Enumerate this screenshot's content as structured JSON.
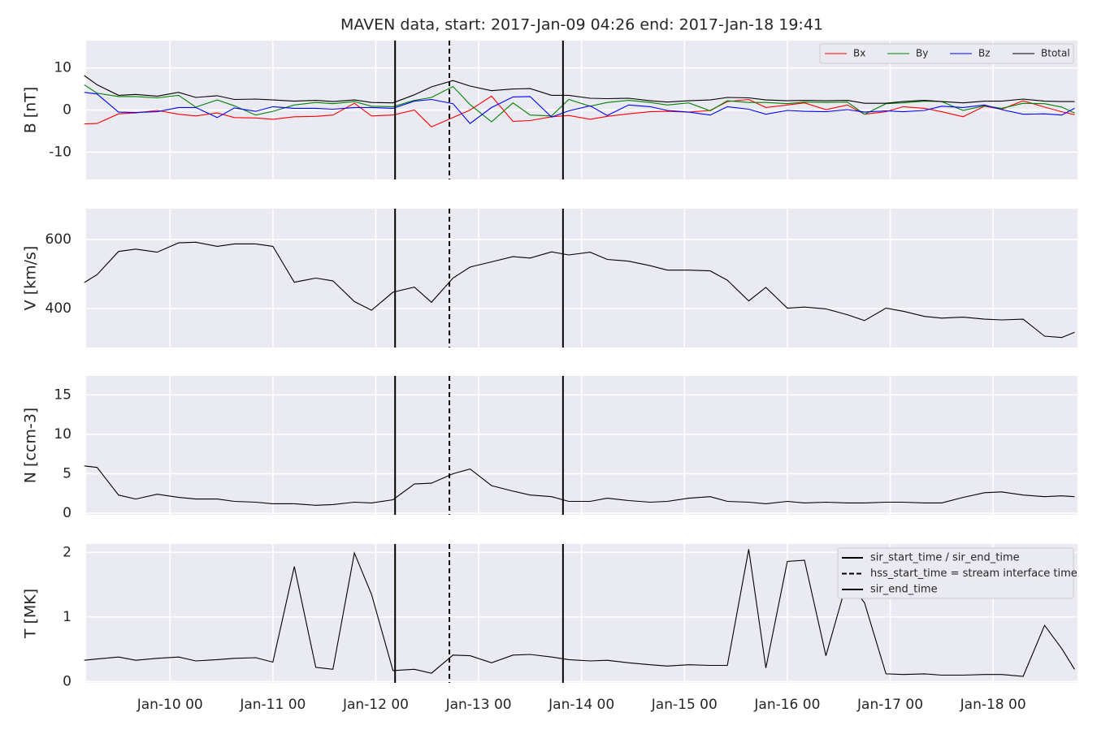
{
  "chart_data": [
    {
      "type": "line",
      "title": "MAVEN data, start: 2017-Jan-09 04:26  end: 2017-Jan-18 19:41",
      "ylabel": "B [nT]",
      "x": [
        "2017-01-09 04",
        "2017-01-09 07",
        "2017-01-09 12",
        "2017-01-09 16",
        "2017-01-09 21",
        "2017-01-10 02",
        "2017-01-10 06",
        "2017-01-10 11",
        "2017-01-10 15",
        "2017-01-10 20",
        "2017-01-11 00",
        "2017-01-11 05",
        "2017-01-11 10",
        "2017-01-11 14",
        "2017-01-11 19",
        "2017-01-11 23",
        "2017-01-12 04",
        "2017-01-12 09",
        "2017-01-12 13",
        "2017-01-12 18",
        "2017-01-12 22",
        "2017-01-13 03",
        "2017-01-13 08",
        "2017-01-13 12",
        "2017-01-13 17",
        "2017-01-13 21",
        "2017-01-14 02",
        "2017-01-14 06",
        "2017-01-14 11",
        "2017-01-14 16",
        "2017-01-14 20",
        "2017-01-15 01",
        "2017-01-15 06",
        "2017-01-15 10",
        "2017-01-15 15",
        "2017-01-15 19",
        "2017-01-16 00",
        "2017-01-16 04",
        "2017-01-16 09",
        "2017-01-16 14",
        "2017-01-16 18",
        "2017-01-16 23",
        "2017-01-17 03",
        "2017-01-17 08",
        "2017-01-17 12",
        "2017-01-17 17",
        "2017-01-17 22",
        "2017-01-18 02",
        "2017-01-18 07",
        "2017-01-18 12",
        "2017-01-18 16",
        "2017-01-18 19"
      ],
      "series": [
        {
          "name": "Bx",
          "color": "#ff0000",
          "values": [
            -3.3,
            -3.2,
            -0.9,
            -0.7,
            -0.1,
            -1.0,
            -1.4,
            -0.7,
            -1.8,
            -1.9,
            -2.2,
            -1.6,
            -1.5,
            -1.2,
            1.6,
            -1.4,
            -1.2,
            0.0,
            -4.0,
            -1.8,
            0.0,
            3.3,
            -2.7,
            -2.5,
            -1.6,
            -1.3,
            -2.2,
            -1.5,
            -0.9,
            -0.4,
            -0.3,
            -0.5,
            -0.1,
            2.0,
            2.5,
            0.6,
            1.2,
            1.7,
            0.1,
            1.2,
            -1.0,
            -0.4,
            0.8,
            0.4,
            -0.4,
            -1.6,
            0.9,
            0.2,
            2.2,
            0.7,
            -0.4,
            -1.1
          ]
        },
        {
          "name": "By",
          "color": "#008000",
          "values": [
            6.0,
            4.0,
            3.2,
            3.2,
            2.9,
            3.5,
            0.7,
            2.4,
            1.0,
            -1.2,
            -0.3,
            1.2,
            1.8,
            1.5,
            2.0,
            0.9,
            0.8,
            2.3,
            3.0,
            5.6,
            1.3,
            -2.8,
            1.7,
            -1.2,
            -1.4,
            2.5,
            0.9,
            1.8,
            2.3,
            1.8,
            1.2,
            1.7,
            -0.2,
            2.2,
            1.8,
            1.8,
            1.5,
            1.9,
            1.8,
            1.9,
            -1.0,
            1.5,
            1.7,
            2.1,
            2.0,
            -0.1,
            1.0,
            0.4,
            1.6,
            1.5,
            0.7,
            -0.7
          ]
        },
        {
          "name": "Bz",
          "color": "#0000ff",
          "values": [
            4.2,
            3.8,
            -0.5,
            -0.6,
            -0.4,
            0.6,
            0.6,
            -1.8,
            0.5,
            -0.3,
            0.8,
            0.4,
            0.4,
            0.2,
            0.6,
            0.6,
            0.4,
            2.1,
            2.5,
            1.5,
            -3.2,
            0.6,
            3.1,
            3.2,
            -1.7,
            -0.2,
            1.0,
            -1.3,
            1.2,
            0.8,
            -0.1,
            -0.5,
            -1.2,
            0.8,
            0.2,
            -1.0,
            -0.1,
            -0.3,
            -0.4,
            0.1,
            -0.5,
            -0.2,
            -0.4,
            -0.1,
            0.9,
            0.6,
            1.2,
            0.1,
            -1.0,
            -0.9,
            -1.2,
            0.4
          ]
        },
        {
          "name": "Btotal",
          "color": "#000000",
          "values": [
            8.2,
            6.0,
            3.5,
            3.7,
            3.3,
            4.2,
            3.0,
            3.4,
            2.5,
            2.6,
            2.4,
            2.1,
            2.3,
            2.0,
            2.4,
            1.8,
            1.7,
            3.6,
            5.5,
            7.0,
            5.7,
            4.6,
            5.0,
            5.1,
            3.5,
            3.5,
            2.8,
            2.7,
            2.8,
            2.2,
            1.9,
            2.2,
            2.4,
            3.0,
            2.9,
            2.4,
            2.2,
            2.3,
            2.2,
            2.3,
            1.6,
            1.6,
            2.0,
            2.3,
            2.0,
            1.7,
            2.1,
            2.1,
            2.6,
            2.1,
            2.0,
            2.0
          ]
        }
      ],
      "ylim": [
        -16.5,
        16.5
      ],
      "yticks": [
        -10,
        0,
        10
      ],
      "grid": true,
      "legend": "upper right"
    },
    {
      "type": "line",
      "ylabel": "V [km/s]",
      "x": [
        "2017-01-09 04",
        "2017-01-09 07",
        "2017-01-09 12",
        "2017-01-09 16",
        "2017-01-09 21",
        "2017-01-10 02",
        "2017-01-10 06",
        "2017-01-10 11",
        "2017-01-10 15",
        "2017-01-10 20",
        "2017-01-11 00",
        "2017-01-11 05",
        "2017-01-11 10",
        "2017-01-11 14",
        "2017-01-11 19",
        "2017-01-11 23",
        "2017-01-12 04",
        "2017-01-12 09",
        "2017-01-12 13",
        "2017-01-12 18",
        "2017-01-12 22",
        "2017-01-13 03",
        "2017-01-13 08",
        "2017-01-13 12",
        "2017-01-13 17",
        "2017-01-13 21",
        "2017-01-14 02",
        "2017-01-14 06",
        "2017-01-14 11",
        "2017-01-14 16",
        "2017-01-14 20",
        "2017-01-15 01",
        "2017-01-15 06",
        "2017-01-15 10",
        "2017-01-15 15",
        "2017-01-15 19",
        "2017-01-16 00",
        "2017-01-16 04",
        "2017-01-16 09",
        "2017-01-16 14",
        "2017-01-16 18",
        "2017-01-16 23",
        "2017-01-17 03",
        "2017-01-17 08",
        "2017-01-17 12",
        "2017-01-17 17",
        "2017-01-17 22",
        "2017-01-18 02",
        "2017-01-18 07",
        "2017-01-18 12",
        "2017-01-18 16",
        "2017-01-18 19"
      ],
      "series": [
        {
          "color": "#000000",
          "values": [
            475,
            498,
            565,
            572,
            563,
            590,
            592,
            580,
            587,
            587,
            580,
            476,
            488,
            480,
            420,
            395,
            447,
            462,
            418,
            488,
            520,
            535,
            550,
            546,
            564,
            555,
            563,
            542,
            537,
            524,
            511,
            511,
            509,
            482,
            422,
            461,
            401,
            404,
            399,
            382,
            365,
            401,
            392,
            377,
            372,
            375,
            369,
            367,
            369,
            320,
            316,
            331
          ]
        }
      ],
      "ylim": [
        287,
        689
      ],
      "yticks": [
        400,
        600
      ],
      "grid": true
    },
    {
      "type": "line",
      "ylabel": "N [ccm-3]",
      "x": [
        "2017-01-09 04",
        "2017-01-09 07",
        "2017-01-09 12",
        "2017-01-09 16",
        "2017-01-09 21",
        "2017-01-10 02",
        "2017-01-10 06",
        "2017-01-10 11",
        "2017-01-10 15",
        "2017-01-10 20",
        "2017-01-11 00",
        "2017-01-11 05",
        "2017-01-11 10",
        "2017-01-11 14",
        "2017-01-11 19",
        "2017-01-11 23",
        "2017-01-12 04",
        "2017-01-12 09",
        "2017-01-12 13",
        "2017-01-12 18",
        "2017-01-12 22",
        "2017-01-13 03",
        "2017-01-13 08",
        "2017-01-13 12",
        "2017-01-13 17",
        "2017-01-13 21",
        "2017-01-14 02",
        "2017-01-14 06",
        "2017-01-14 11",
        "2017-01-14 16",
        "2017-01-14 20",
        "2017-01-15 01",
        "2017-01-15 06",
        "2017-01-15 10",
        "2017-01-15 15",
        "2017-01-15 19",
        "2017-01-16 00",
        "2017-01-16 04",
        "2017-01-16 09",
        "2017-01-16 14",
        "2017-01-16 18",
        "2017-01-16 23",
        "2017-01-17 03",
        "2017-01-17 08",
        "2017-01-17 12",
        "2017-01-17 17",
        "2017-01-17 22",
        "2017-01-18 02",
        "2017-01-18 07",
        "2017-01-18 12",
        "2017-01-18 16",
        "2017-01-18 19"
      ],
      "series": [
        {
          "color": "#000000",
          "values": [
            6.0,
            5.8,
            2.3,
            1.8,
            2.4,
            2.0,
            1.8,
            1.8,
            1.5,
            1.4,
            1.2,
            1.2,
            1.0,
            1.1,
            1.4,
            1.3,
            1.7,
            3.7,
            3.8,
            5.0,
            5.6,
            3.5,
            2.8,
            2.3,
            2.1,
            1.5,
            1.5,
            1.9,
            1.6,
            1.4,
            1.5,
            1.9,
            2.1,
            1.5,
            1.4,
            1.2,
            1.5,
            1.3,
            1.4,
            1.3,
            1.3,
            1.4,
            1.4,
            1.3,
            1.3,
            2.0,
            2.6,
            2.7,
            2.3,
            2.1,
            2.2,
            2.1
          ]
        }
      ],
      "ylim": [
        -0.2,
        17.4
      ],
      "yticks": [
        0,
        5,
        10,
        15
      ],
      "grid": true
    },
    {
      "type": "line",
      "ylabel": "T [MK]",
      "x": [
        "2017-01-09 04",
        "2017-01-09 07",
        "2017-01-09 12",
        "2017-01-09 16",
        "2017-01-09 21",
        "2017-01-10 02",
        "2017-01-10 06",
        "2017-01-10 11",
        "2017-01-10 15",
        "2017-01-10 20",
        "2017-01-11 00",
        "2017-01-11 05",
        "2017-01-11 10",
        "2017-01-11 14",
        "2017-01-11 19",
        "2017-01-11 23",
        "2017-01-12 04",
        "2017-01-12 09",
        "2017-01-12 13",
        "2017-01-12 18",
        "2017-01-12 22",
        "2017-01-13 03",
        "2017-01-13 08",
        "2017-01-13 12",
        "2017-01-13 17",
        "2017-01-13 21",
        "2017-01-14 02",
        "2017-01-14 06",
        "2017-01-14 11",
        "2017-01-14 16",
        "2017-01-14 20",
        "2017-01-15 01",
        "2017-01-15 06",
        "2017-01-15 10",
        "2017-01-15 15",
        "2017-01-15 19",
        "2017-01-16 00",
        "2017-01-16 04",
        "2017-01-16 09",
        "2017-01-16 14",
        "2017-01-16 18",
        "2017-01-16 23",
        "2017-01-17 03",
        "2017-01-17 08",
        "2017-01-17 12",
        "2017-01-17 17",
        "2017-01-17 22",
        "2017-01-18 02",
        "2017-01-18 07",
        "2017-01-18 12",
        "2017-01-18 16",
        "2017-01-18 19"
      ],
      "series": [
        {
          "color": "#000000",
          "values": [
            0.33,
            0.35,
            0.38,
            0.33,
            0.36,
            0.38,
            0.32,
            0.34,
            0.36,
            0.37,
            0.3,
            1.78,
            0.22,
            0.19,
            1.99,
            1.35,
            0.17,
            0.19,
            0.13,
            0.41,
            0.4,
            0.29,
            0.41,
            0.42,
            0.38,
            0.34,
            0.32,
            0.33,
            0.29,
            0.26,
            0.24,
            0.26,
            0.25,
            0.25,
            2.05,
            0.21,
            1.86,
            1.88,
            0.4,
            1.57,
            1.22,
            0.12,
            0.11,
            0.12,
            0.1,
            0.1,
            0.11,
            0.11,
            0.08,
            0.87,
            0.51,
            0.19
          ]
        }
      ],
      "ylim": [
        -0.02,
        2.13
      ],
      "yticks": [
        0,
        1,
        2
      ],
      "grid": true,
      "xlim": [
        "2017-01-09 04:26",
        "2017-01-18 19:41"
      ],
      "xticks": [
        {
          "value": "2017-01-10 00",
          "label": "Jan-10 00"
        },
        {
          "value": "2017-01-11 00",
          "label": "Jan-11 00"
        },
        {
          "value": "2017-01-12 00",
          "label": "Jan-12 00"
        },
        {
          "value": "2017-01-13 00",
          "label": "Jan-13 00"
        },
        {
          "value": "2017-01-14 00",
          "label": "Jan-14 00"
        },
        {
          "value": "2017-01-15 00",
          "label": "Jan-15 00"
        },
        {
          "value": "2017-01-16 00",
          "label": "Jan-16 00"
        },
        {
          "value": "2017-01-17 00",
          "label": "Jan-17 00"
        },
        {
          "value": "2017-01-18 00",
          "label": "Jan-18 00"
        }
      ],
      "events_legend": "upper right"
    }
  ],
  "events": [
    {
      "name": "sir_start_time / sir_end_time",
      "x": "2017-01-12 04:30",
      "dashed": false
    },
    {
      "name": "hss_start_time = stream interface time",
      "x": "2017-01-12 17:10",
      "dashed": true
    },
    {
      "name": "sir_end_time",
      "x": "2017-01-13 19:40",
      "dashed": false
    }
  ]
}
